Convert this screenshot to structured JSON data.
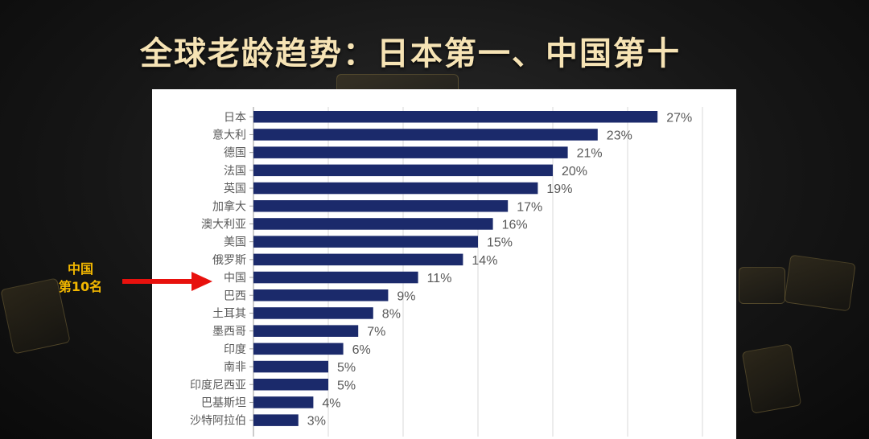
{
  "title": "全球老龄趋势：日本第一、中国第十",
  "callout": {
    "line1": "中国",
    "line2": "第10名"
  },
  "colors": {
    "bar": "#1b2a6b",
    "title": "#f6e3b4",
    "callout": "#f2b700",
    "arrow": "#e8110d"
  },
  "chart_data": {
    "type": "bar",
    "orientation": "horizontal",
    "categories": [
      "日本",
      "意大利",
      "德国",
      "法国",
      "英国",
      "加拿大",
      "澳大利亚",
      "美国",
      "俄罗斯",
      "中国",
      "巴西",
      "土耳其",
      "墨西哥",
      "印度",
      "南非",
      "印度尼西亚",
      "巴基斯坦",
      "沙特阿拉伯"
    ],
    "values": [
      27,
      23,
      21,
      20,
      19,
      17,
      16,
      15,
      14,
      11,
      9,
      8,
      7,
      6,
      5,
      5,
      4,
      3
    ],
    "value_labels": [
      "27%",
      "23%",
      "21%",
      "20%",
      "19%",
      "17%",
      "16%",
      "15%",
      "14%",
      "11%",
      "9%",
      "8%",
      "7%",
      "6%",
      "5%",
      "5%",
      "4%",
      "3%"
    ],
    "xlim": [
      0,
      30
    ],
    "grid": true,
    "legend": "none"
  }
}
